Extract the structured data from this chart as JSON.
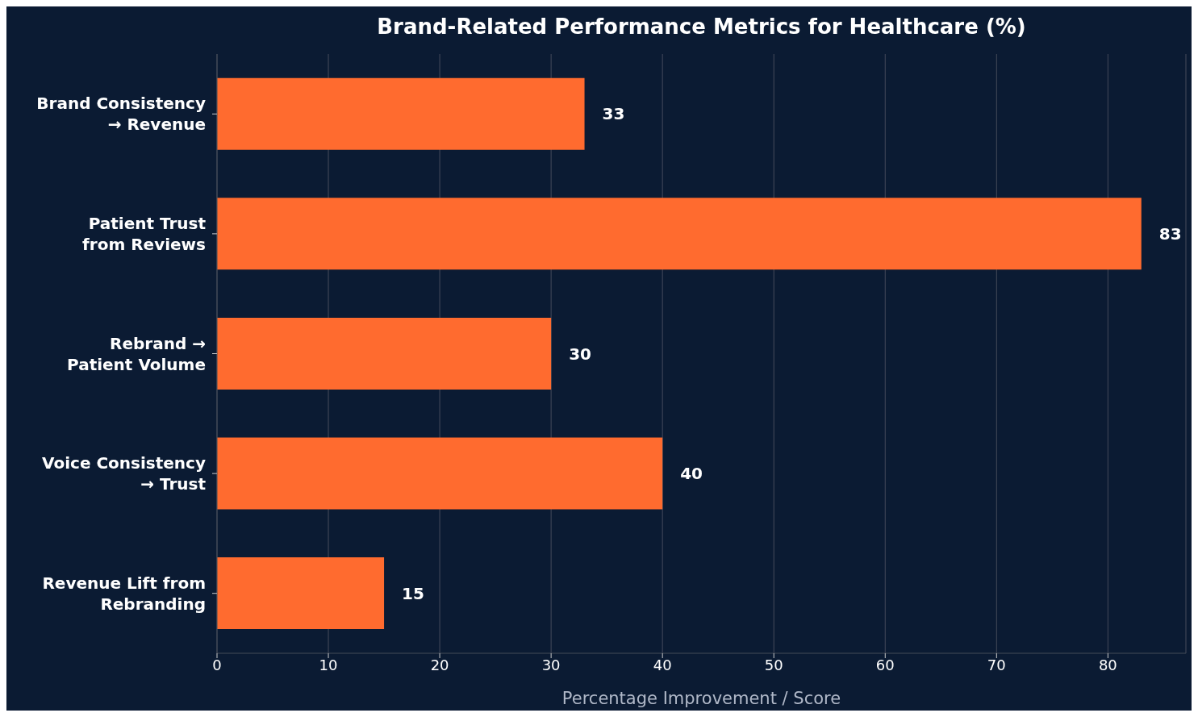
{
  "chart_data": {
    "type": "bar",
    "orientation": "horizontal",
    "title": "Brand-Related Performance Metrics for Healthcare (%)",
    "xlabel": "Percentage Improvement / Score",
    "categories": [
      "Brand Consistency\n→ Revenue",
      "Patient Trust\nfrom Reviews",
      "Rebrand →\nPatient Volume",
      "Voice Consistency\n→ Trust",
      "Revenue Lift from\nRebranding"
    ],
    "values": [
      33,
      83,
      30,
      40,
      15
    ],
    "color": "#ff6b2f",
    "xlim": [
      0,
      87
    ],
    "xticks": [
      0,
      10,
      20,
      30,
      40,
      50,
      60,
      70,
      80
    ],
    "grid": "x",
    "data_labels": true
  }
}
